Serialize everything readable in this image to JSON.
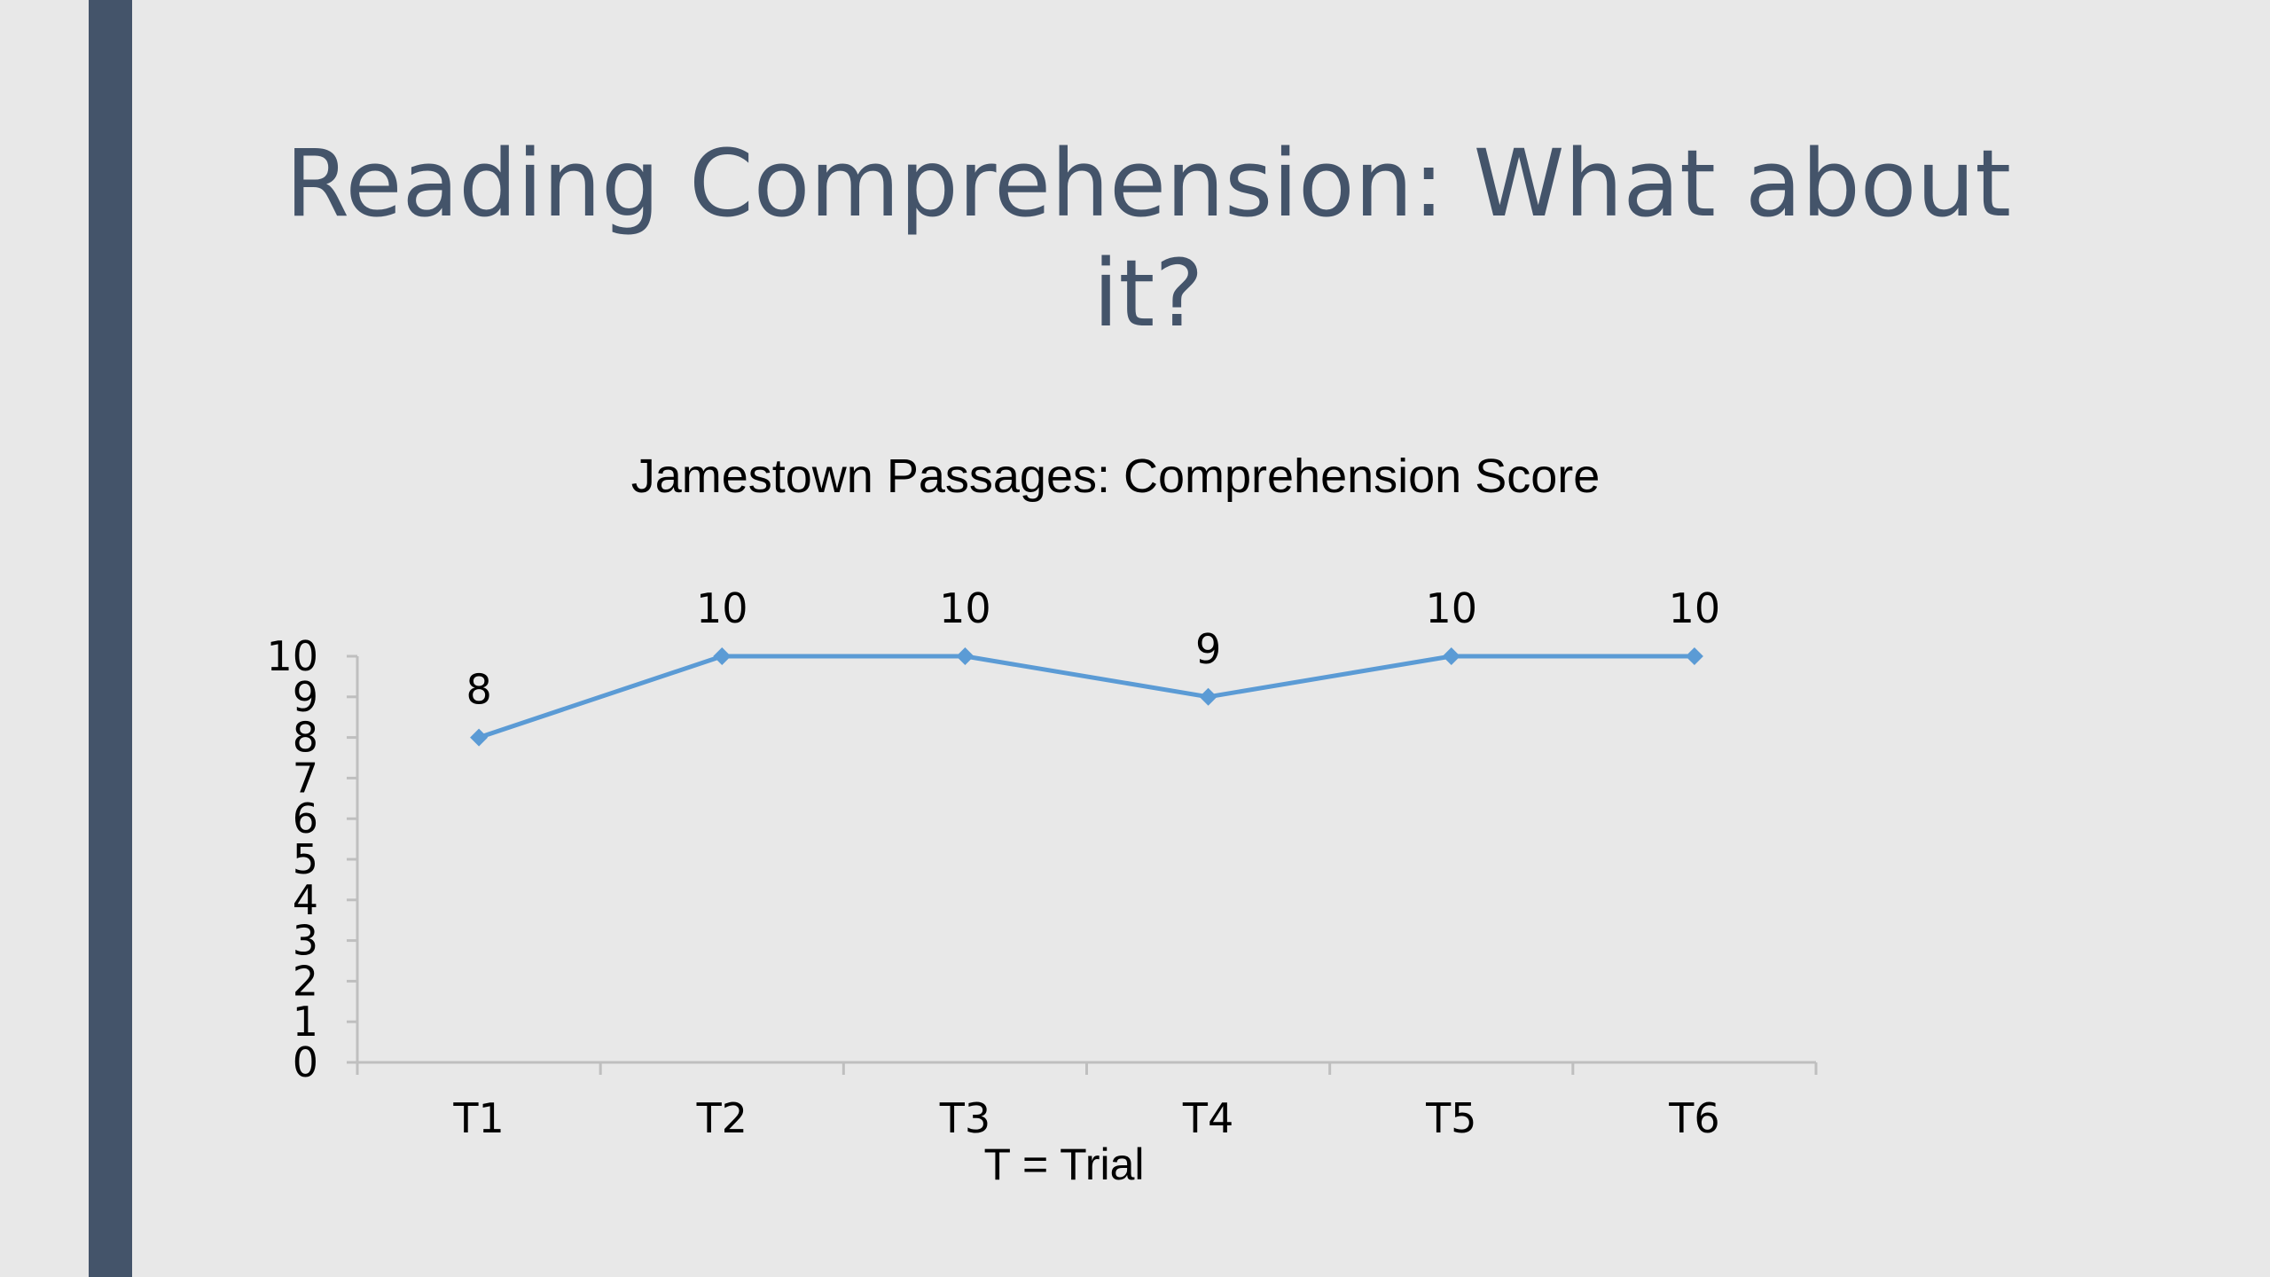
{
  "slide": {
    "title_line1": "Reading Comprehension: What about",
    "title_line2": "it?"
  },
  "colors": {
    "side_bar": "#44546a",
    "title": "#44546a",
    "series_line": "#5b9bd5",
    "axis": "#bfbfbf",
    "background": "#e8e8e8"
  },
  "chart_data": {
    "type": "line",
    "title": "Jamestown Passages: Comprehension Score",
    "xlabel": "T = Trial",
    "ylabel": "",
    "categories": [
      "T1",
      "T2",
      "T3",
      "T4",
      "T5",
      "T6"
    ],
    "series": [
      {
        "values": [
          8,
          10,
          10,
          9,
          10,
          10
        ],
        "marker": "diamond",
        "data_labels": true
      }
    ],
    "ylim": [
      0,
      10
    ],
    "yticks": [
      0,
      1,
      2,
      3,
      4,
      5,
      6,
      7,
      8,
      9,
      10
    ],
    "grid": false,
    "legend": "none"
  }
}
